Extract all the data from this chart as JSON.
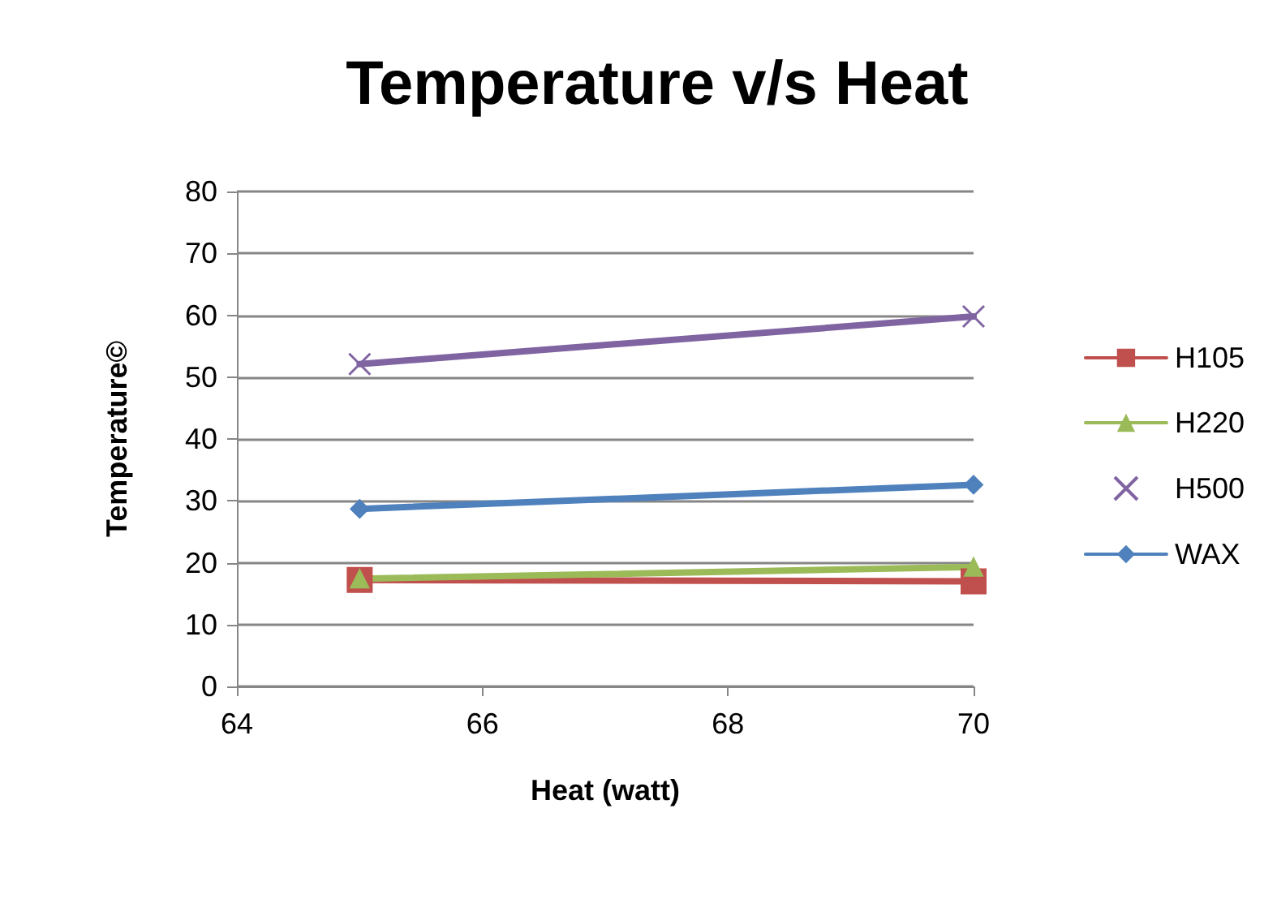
{
  "chart_data": {
    "type": "line",
    "title": "Temperature v/s Heat",
    "xlabel": "Heat (watt)",
    "ylabel": "Temperature©",
    "x": [
      65,
      70
    ],
    "xlim": [
      64,
      70
    ],
    "xticks": [
      64,
      66,
      68,
      70
    ],
    "ylim": [
      0,
      80
    ],
    "yticks": [
      0,
      10,
      20,
      30,
      40,
      50,
      60,
      70,
      80
    ],
    "grid": "y",
    "legend": "right",
    "series": [
      {
        "name": "H105",
        "color": "#c0504d",
        "marker": "square",
        "values": [
          17.2,
          17.0
        ]
      },
      {
        "name": "H220",
        "color": "#9bbb59",
        "marker": "triangle",
        "values": [
          17.4,
          19.3
        ]
      },
      {
        "name": "H500",
        "color": "#8064a2",
        "marker": "cross",
        "values": [
          52.1,
          59.8
        ]
      },
      {
        "name": "WAX",
        "color": "#4f81bd",
        "marker": "diamond",
        "values": [
          28.7,
          32.6
        ]
      }
    ]
  }
}
